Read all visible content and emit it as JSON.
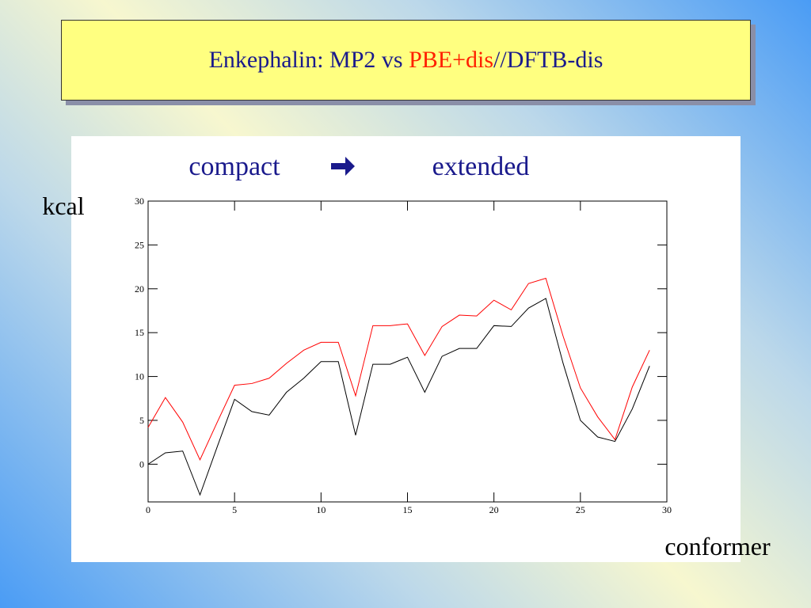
{
  "slide": {
    "title_parts": [
      "Enkephalin: MP2 vs ",
      "PBE+dis",
      "//DFTB-dis"
    ],
    "left_label": "compact",
    "right_label": "extended"
  },
  "chart_data": {
    "type": "line",
    "ylabel": "kcal",
    "xlabel": "conformer",
    "x": [
      0,
      1,
      2,
      3,
      4,
      5,
      6,
      7,
      8,
      9,
      10,
      11,
      12,
      13,
      14,
      15,
      16,
      17,
      18,
      19,
      20,
      21,
      22,
      23,
      24,
      25,
      26,
      27,
      28,
      29
    ],
    "series": [
      {
        "color": "#000000",
        "values": [
          0,
          1.3,
          1.5,
          -3.5,
          2,
          7.4,
          6,
          5.6,
          8.2,
          9.8,
          11.7,
          11.7,
          3.3,
          11.4,
          11.4,
          12.2,
          8.2,
          12.3,
          13.2,
          13.2,
          15.8,
          15.7,
          17.8,
          18.9,
          11.5,
          5,
          3.1,
          2.6,
          6.3,
          11.2
        ]
      },
      {
        "color": "#ff0000",
        "values": [
          4.2,
          7.6,
          4.8,
          0.5,
          4.8,
          9,
          9.2,
          9.8,
          11.5,
          13,
          13.9,
          13.9,
          7.8,
          15.8,
          15.8,
          16,
          12.4,
          15.7,
          17,
          16.9,
          18.7,
          17.6,
          20.6,
          21.2,
          14.6,
          8.7,
          5.4,
          2.8,
          8.8,
          13
        ]
      }
    ],
    "xlim": [
      0,
      30
    ],
    "xticks": [
      0,
      5,
      10,
      15,
      20,
      25,
      30
    ],
    "ylim": [
      -4.3,
      30
    ],
    "yticks": [
      0,
      5,
      10,
      15,
      20,
      25,
      30
    ]
  }
}
